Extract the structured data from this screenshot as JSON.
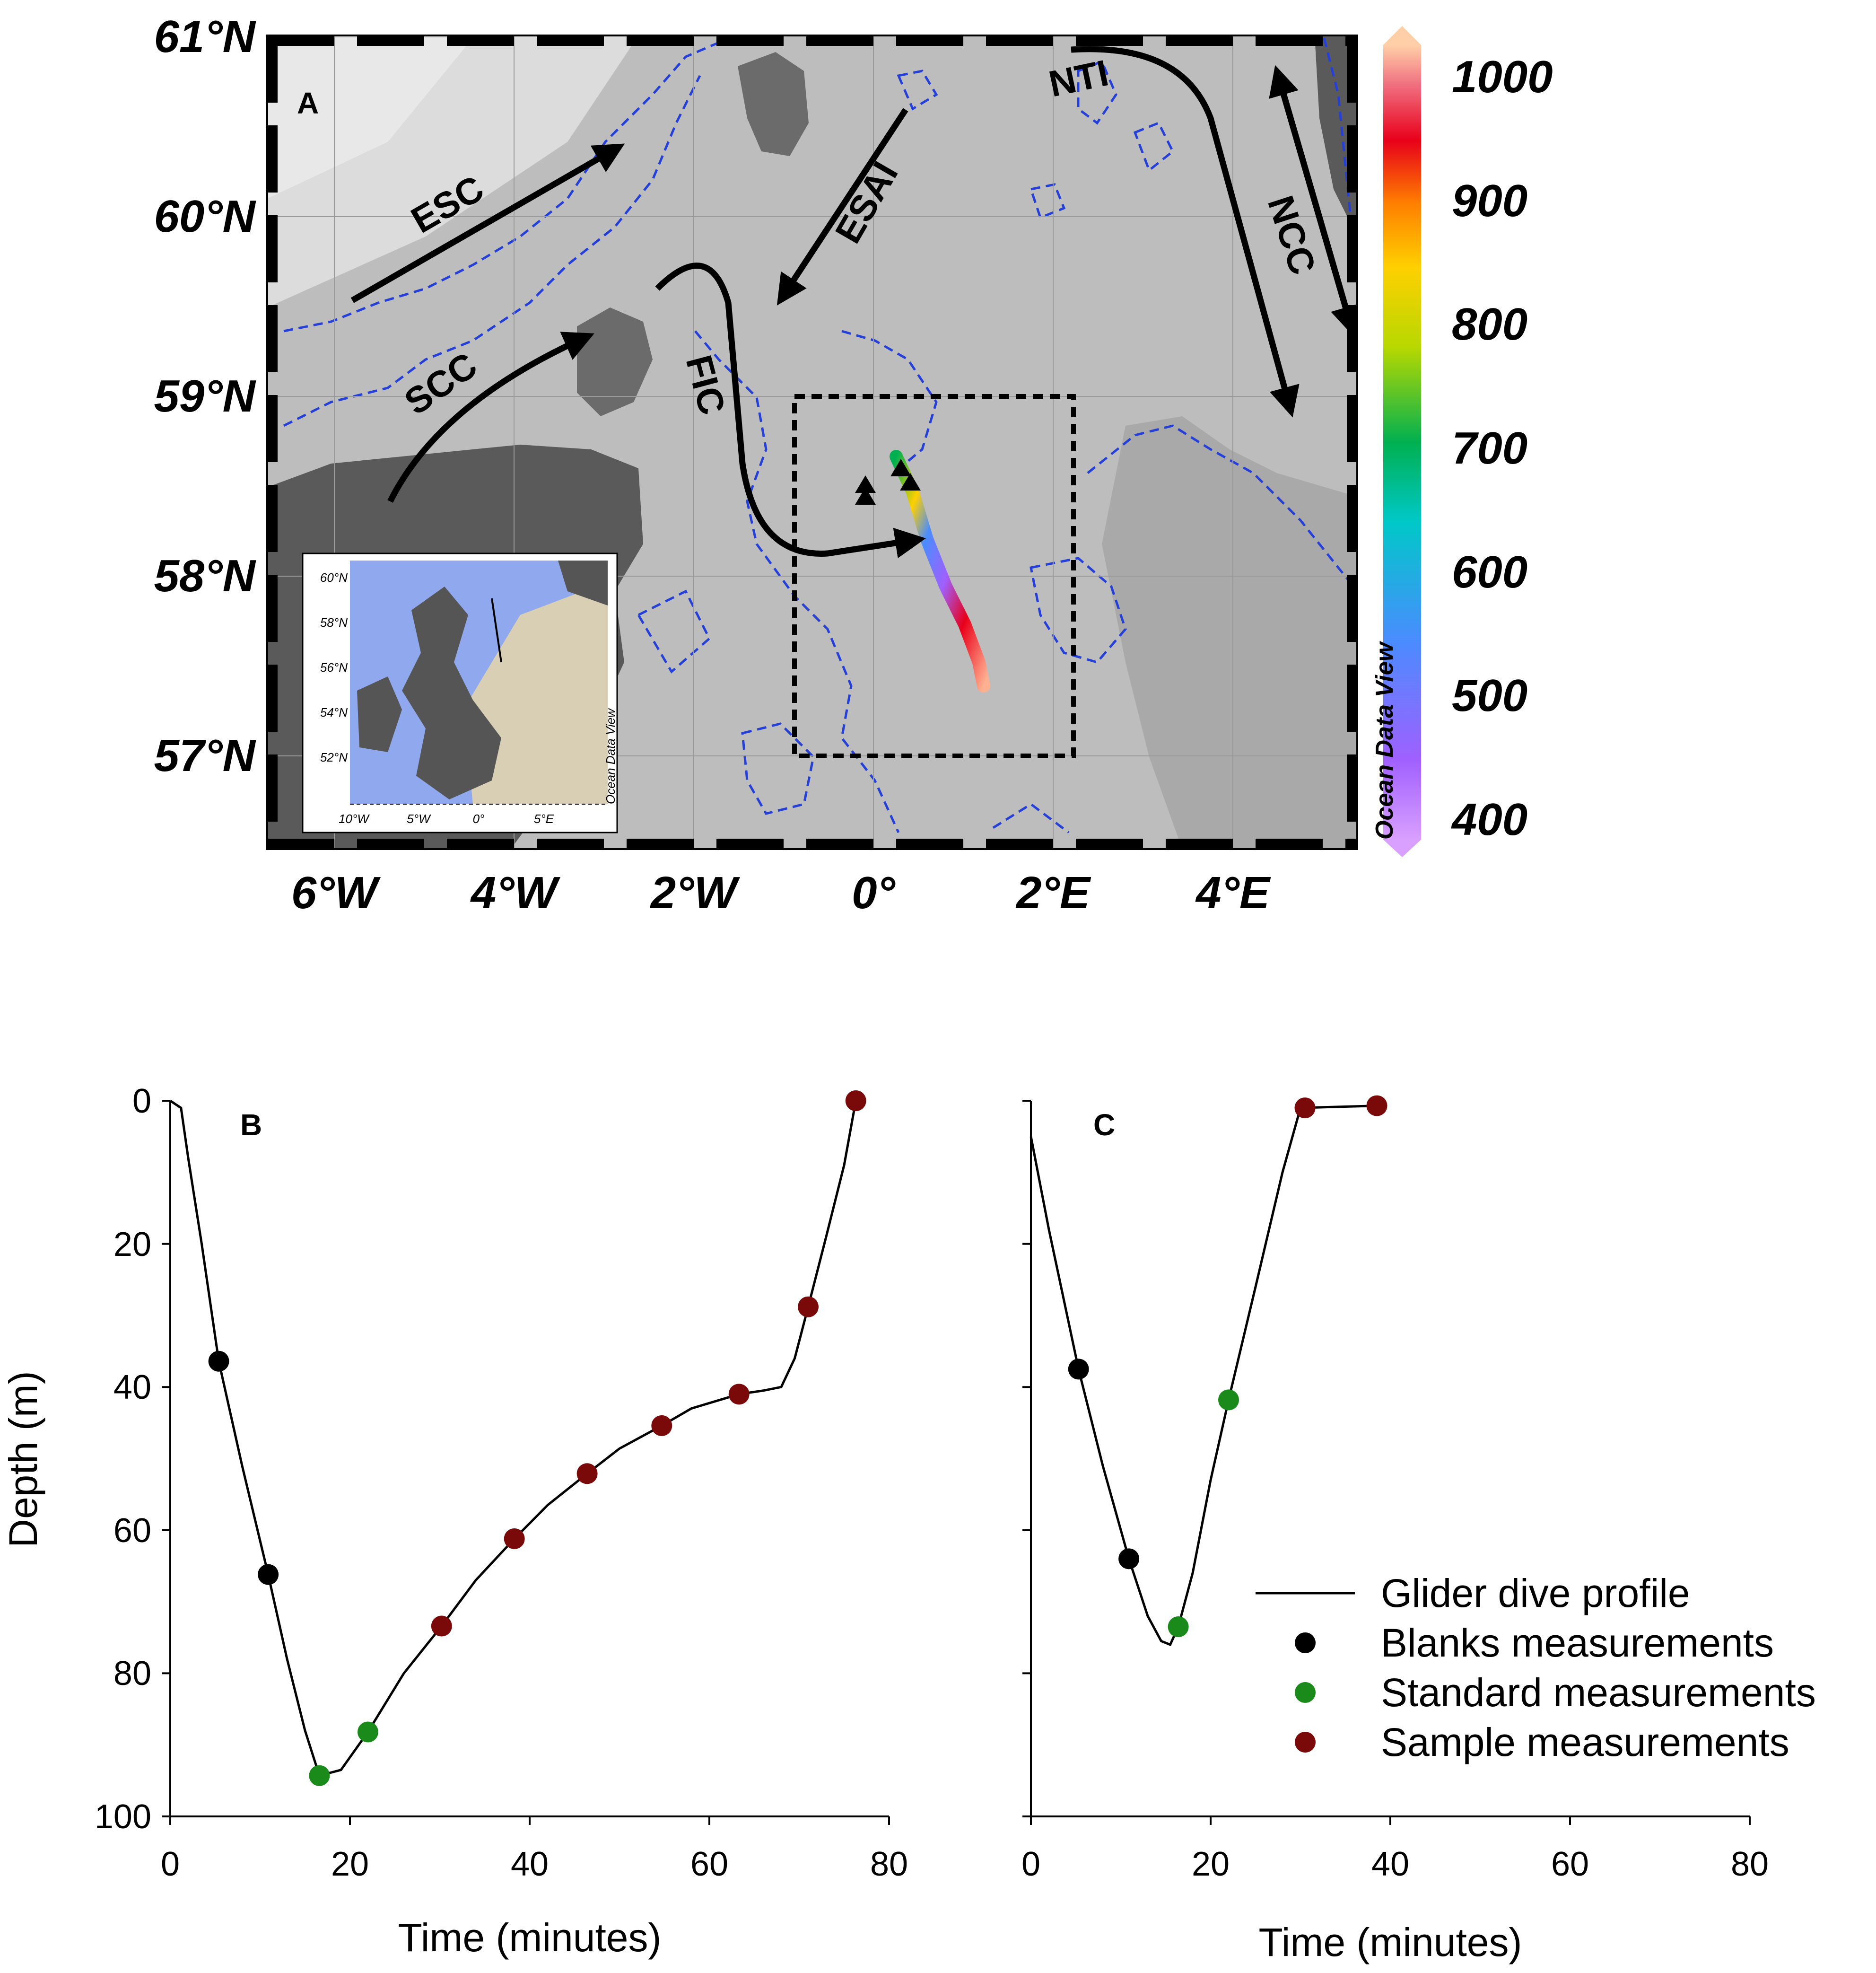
{
  "map": {
    "panel_label": "A",
    "lat_labels": [
      "61°N",
      "60°N",
      "59°N",
      "58°N",
      "57°N"
    ],
    "lon_labels": [
      "6°W",
      "4°W",
      "2°W",
      "0°",
      "2°E",
      "4°E"
    ],
    "currents": [
      {
        "id": "ESC",
        "label": "ESC"
      },
      {
        "id": "SCC",
        "label": "SCC"
      },
      {
        "id": "FIC",
        "label": "FIC"
      },
      {
        "id": "ESAI",
        "label": "ESAI"
      },
      {
        "id": "NTI",
        "label": "NTI"
      },
      {
        "id": "NCC",
        "label": "NCC"
      }
    ],
    "colorbar": {
      "ticks": [
        "1000",
        "900",
        "800",
        "700",
        "600",
        "500",
        "400"
      ],
      "credit": "Ocean Data View",
      "colors": {
        "low": "#b466ff",
        "mid": "#00b050",
        "high": "#e8001a"
      }
    },
    "inset": {
      "lat_labels": [
        "60°N",
        "58°N",
        "56°N",
        "54°N",
        "52°N"
      ],
      "lon_labels": [
        "10°W",
        "5°W",
        "0°",
        "5°E"
      ],
      "credit": "Ocean Data View"
    }
  },
  "chart_data": [
    {
      "type": "line",
      "panel": "B",
      "xlabel": "Time (minutes)",
      "ylabel": "Depth (m)",
      "xlim": [
        0,
        80
      ],
      "ylim": [
        100,
        0
      ],
      "x_ticks": [
        "0",
        "20",
        "40",
        "60",
        "80"
      ],
      "y_ticks": [
        "0",
        "20",
        "40",
        "60",
        "80",
        "100"
      ],
      "series": [
        {
          "name": "Glider dive profile",
          "color": "#000000",
          "points": [
            [
              0,
              0
            ],
            [
              1.2,
              1
            ],
            [
              2,
              8
            ],
            [
              3.5,
              20
            ],
            [
              5.4,
              36.4
            ],
            [
              8,
              51
            ],
            [
              10.9,
              66.2
            ],
            [
              13,
              78
            ],
            [
              15,
              88
            ],
            [
              16.6,
              94.3
            ],
            [
              19,
              93.5
            ],
            [
              22,
              88.2
            ],
            [
              26,
              80
            ],
            [
              30.2,
              73.4
            ],
            [
              34,
              67
            ],
            [
              38.3,
              61.2
            ],
            [
              42,
              56.5
            ],
            [
              46.4,
              52.1
            ],
            [
              50,
              48.6
            ],
            [
              54.7,
              45.4
            ],
            [
              58,
              43
            ],
            [
              63.3,
              41
            ],
            [
              66,
              40.5
            ],
            [
              68,
              40
            ],
            [
              69.5,
              36
            ],
            [
              71,
              28.8
            ],
            [
              73,
              19
            ],
            [
              75,
              9
            ],
            [
              76.3,
              0
            ]
          ]
        },
        {
          "name": "Blanks measurements",
          "color": "#000000",
          "points": [
            [
              5.4,
              36.4
            ],
            [
              10.9,
              66.2
            ]
          ]
        },
        {
          "name": "Standard measurements",
          "color": "#1a8a1a",
          "points": [
            [
              16.6,
              94.3
            ],
            [
              22,
              88.2
            ]
          ]
        },
        {
          "name": "Sample measurements",
          "color": "#7a0a0a",
          "points": [
            [
              30.2,
              73.4
            ],
            [
              38.3,
              61.2
            ],
            [
              46.4,
              52.1
            ],
            [
              54.7,
              45.4
            ],
            [
              63.3,
              41
            ],
            [
              71,
              28.8
            ],
            [
              76.3,
              0
            ]
          ]
        }
      ]
    },
    {
      "type": "line",
      "panel": "C",
      "xlabel": "Time (minutes)",
      "ylabel": "",
      "xlim": [
        0,
        80
      ],
      "ylim": [
        100,
        0
      ],
      "x_ticks": [
        "0",
        "20",
        "40",
        "60",
        "80"
      ],
      "series": [
        {
          "name": "Glider dive profile",
          "color": "#000000",
          "points": [
            [
              0,
              5
            ],
            [
              2,
              18
            ],
            [
              5.3,
              37.5
            ],
            [
              8,
              51
            ],
            [
              10.9,
              64
            ],
            [
              13,
              72
            ],
            [
              14.5,
              75.5
            ],
            [
              15.5,
              76
            ],
            [
              16.4,
              73.5
            ],
            [
              18,
              66
            ],
            [
              20,
              53
            ],
            [
              22,
              41.8
            ],
            [
              25,
              26
            ],
            [
              28,
              10
            ],
            [
              30,
              1
            ],
            [
              38.5,
              0.7
            ]
          ]
        },
        {
          "name": "Blanks measurements",
          "color": "#000000",
          "points": [
            [
              5.3,
              37.5
            ],
            [
              10.9,
              64
            ]
          ]
        },
        {
          "name": "Standard measurements",
          "color": "#1a8a1a",
          "points": [
            [
              16.4,
              73.5
            ],
            [
              22,
              41.8
            ]
          ]
        },
        {
          "name": "Sample measurements",
          "color": "#7a0a0a",
          "points": [
            [
              30.5,
              1
            ],
            [
              38.5,
              0.7
            ]
          ]
        }
      ]
    }
  ],
  "legend": [
    {
      "label": "Glider dive profile",
      "kind": "line",
      "color": "#000000"
    },
    {
      "label": "Blanks measurements",
      "kind": "dot",
      "color": "#000000"
    },
    {
      "label": "Standard measurements",
      "kind": "dot",
      "color": "#1a8a1a"
    },
    {
      "label": "Sample measurements",
      "kind": "dot",
      "color": "#7a0a0a"
    }
  ]
}
